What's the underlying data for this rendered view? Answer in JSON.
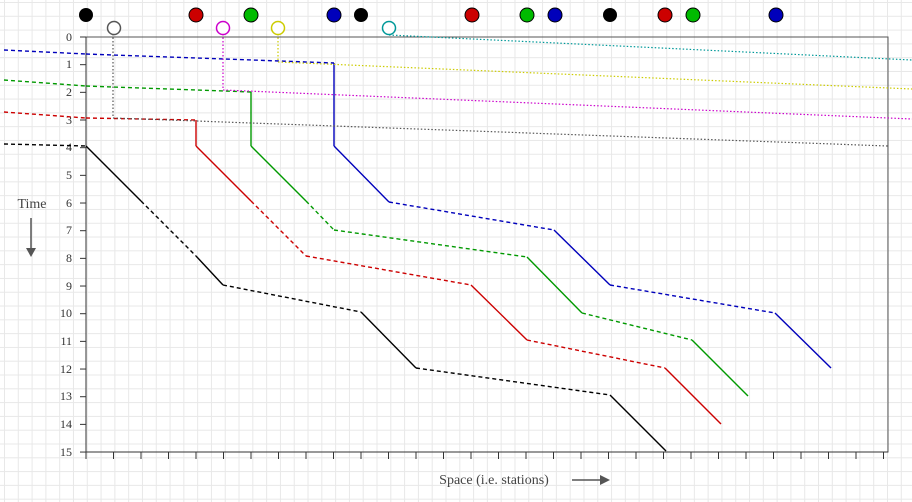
{
  "labels": {
    "y_axis": "Time",
    "x_axis": "Space  (i.e. stations)"
  },
  "colors": {
    "black": "#000000",
    "red": "#cc0000",
    "green": "#009900",
    "blue": "#0000bb",
    "gray": "#555555",
    "magenta": "#cc00cc",
    "yellow": "#cccc00",
    "cyan": "#009999",
    "axis": "#333333"
  },
  "y_ticks": [
    "0",
    "1",
    "2",
    "3",
    "4",
    "5",
    "6",
    "7",
    "8",
    "9",
    "10",
    "11",
    "12",
    "13",
    "14",
    "15"
  ],
  "top_markers": [
    {
      "color": "black",
      "filled": true
    },
    {
      "color": "gray",
      "filled": false
    },
    {
      "color": "red",
      "filled": true
    },
    {
      "color": "magenta",
      "filled": false
    },
    {
      "color": "green",
      "filled": true
    },
    {
      "color": "yellow",
      "filled": false
    },
    {
      "color": "blue",
      "filled": true
    },
    {
      "color": "black",
      "filled": true
    },
    {
      "color": "cyan",
      "filled": false
    },
    {
      "color": "red",
      "filled": true
    },
    {
      "color": "green",
      "filled": true
    },
    {
      "color": "blue",
      "filled": true
    },
    {
      "color": "black",
      "filled": true
    },
    {
      "color": "red",
      "filled": true
    },
    {
      "color": "green",
      "filled": true
    },
    {
      "color": "blue",
      "filled": true
    }
  ],
  "trains": [
    {
      "color": "black"
    },
    {
      "color": "red"
    },
    {
      "color": "green"
    },
    {
      "color": "blue"
    },
    {
      "color": "gray"
    },
    {
      "color": "magenta"
    },
    {
      "color": "yellow"
    },
    {
      "color": "cyan"
    }
  ]
}
